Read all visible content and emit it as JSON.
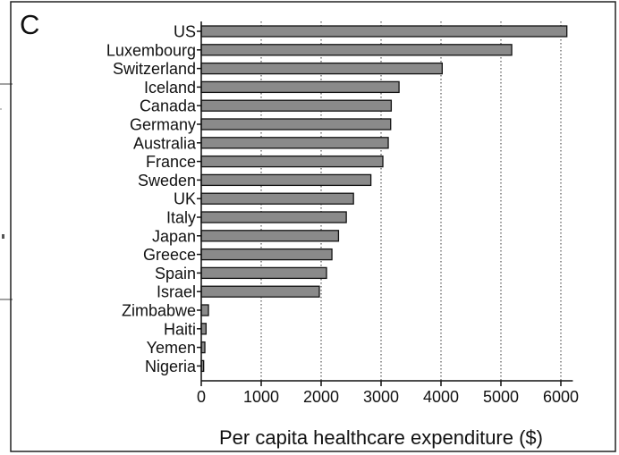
{
  "panel_label": "C",
  "colors": {
    "bar_fill": "#8a8a8a",
    "bar_stroke": "#111111",
    "grid": "#333333",
    "frame": "#222222"
  },
  "chart_data": {
    "type": "bar",
    "orientation": "horizontal",
    "categories": [
      "US",
      "Luxembourg",
      "Switzerland",
      "Iceland",
      "Canada",
      "Germany",
      "Australia",
      "France",
      "Sweden",
      "UK",
      "Italy",
      "Japan",
      "Greece",
      "Spain",
      "Israel",
      "Zimbabwe",
      "Haiti",
      "Yemen",
      "Nigeria"
    ],
    "values": [
      6100,
      5180,
      4020,
      3300,
      3170,
      3160,
      3120,
      3030,
      2830,
      2540,
      2420,
      2290,
      2180,
      2090,
      1970,
      120,
      80,
      60,
      40
    ],
    "xlabel": "Per capita healthcare expenditure ($)",
    "ylabel": "",
    "xlim": [
      0,
      6200
    ],
    "x_ticks": [
      0,
      1000,
      2000,
      3000,
      4000,
      5000,
      6000
    ],
    "x_tick_labels": [
      "0",
      "1000",
      "2000",
      "3000",
      "4000",
      "5000",
      "6000"
    ],
    "grid": "vertical dotted",
    "legend": "none"
  }
}
